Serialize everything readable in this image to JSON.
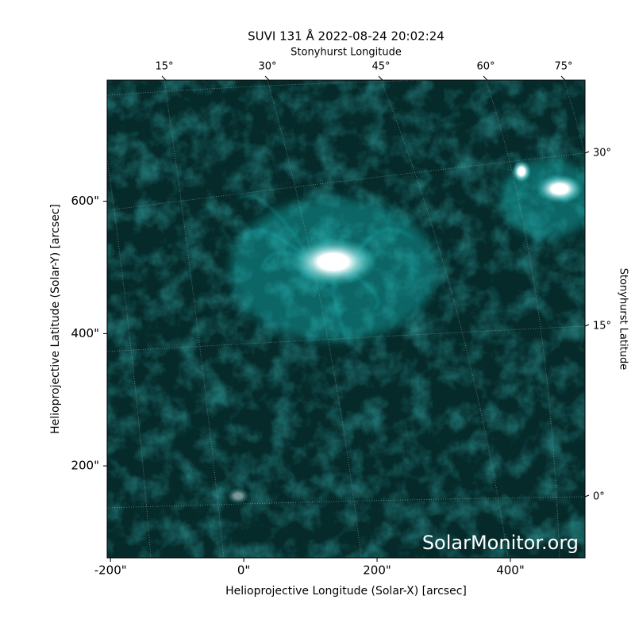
{
  "chart_data": {
    "type": "image",
    "title": "SUVI 131 Å 2022-08-24 20:02:24",
    "xlabel": "Helioprojective Longitude (Solar-X) [arcsec]",
    "ylabel": "Helioprojective Latitude (Solar-Y) [arcsec]",
    "x2label": "Stonyhurst Longitude",
    "y2label": "Stonyhurst Latitude",
    "xlim": [
      -205,
      512
    ],
    "ylim": [
      61,
      783
    ],
    "xticks": [
      {
        "value": -200,
        "label": "-200\""
      },
      {
        "value": 0,
        "label": "0\""
      },
      {
        "value": 200,
        "label": "200\""
      },
      {
        "value": 400,
        "label": "400\""
      }
    ],
    "yticks": [
      {
        "value": 200,
        "label": "200\""
      },
      {
        "value": 400,
        "label": "400\""
      },
      {
        "value": 600,
        "label": "600\""
      }
    ],
    "x2ticks": [
      {
        "value": 15,
        "label": "15°"
      },
      {
        "value": 30,
        "label": "30°"
      },
      {
        "value": 45,
        "label": "45°"
      },
      {
        "value": 60,
        "label": "60°"
      },
      {
        "value": 75,
        "label": "75°"
      }
    ],
    "y2ticks": [
      {
        "value": 0,
        "label": "0°"
      },
      {
        "value": 15,
        "label": "15°"
      },
      {
        "value": 30,
        "label": "30°"
      }
    ],
    "color": "#1fd6d6",
    "watermark": "SolarMonitor.org"
  }
}
